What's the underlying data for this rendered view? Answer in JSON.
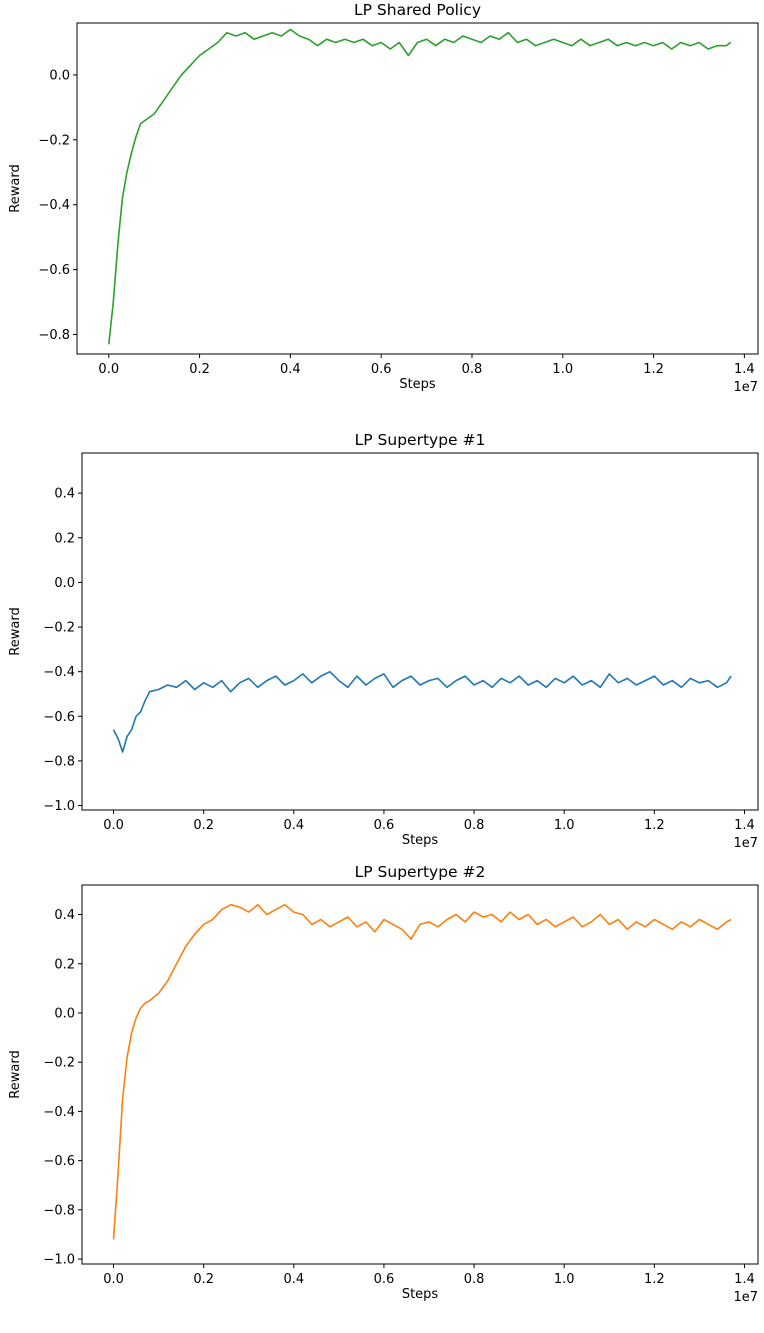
{
  "chart_data": [
    {
      "type": "line",
      "title": "LP Shared Policy",
      "xlabel": "Steps",
      "ylabel": "Reward",
      "x_offset_label": "1e7",
      "xlim": [
        -0.07,
        1.43
      ],
      "ylim": [
        -0.86,
        0.16
      ],
      "xticks": [
        0.0,
        0.2,
        0.4,
        0.6,
        0.8,
        1.0,
        1.2,
        1.4
      ],
      "xtick_labels": [
        "0.0",
        "0.2",
        "0.4",
        "0.6",
        "0.8",
        "1.0",
        "1.2",
        "1.4"
      ],
      "yticks": [
        -0.8,
        -0.6,
        -0.4,
        -0.2,
        0.0
      ],
      "ytick_labels": [
        "−0.8",
        "−0.6",
        "−0.4",
        "−0.2",
        "0.0"
      ],
      "grid": false,
      "series": [
        {
          "color": "#2ca02c",
          "x": [
            0.0,
            0.01,
            0.02,
            0.03,
            0.04,
            0.05,
            0.06,
            0.07,
            0.08,
            0.09,
            0.1,
            0.12,
            0.14,
            0.16,
            0.18,
            0.2,
            0.22,
            0.24,
            0.26,
            0.28,
            0.3,
            0.32,
            0.34,
            0.36,
            0.38,
            0.4,
            0.42,
            0.44,
            0.46,
            0.48,
            0.5,
            0.52,
            0.54,
            0.56,
            0.58,
            0.6,
            0.62,
            0.64,
            0.66,
            0.68,
            0.7,
            0.72,
            0.74,
            0.76,
            0.78,
            0.8,
            0.82,
            0.84,
            0.86,
            0.88,
            0.9,
            0.92,
            0.94,
            0.96,
            0.98,
            1.0,
            1.02,
            1.04,
            1.06,
            1.08,
            1.1,
            1.12,
            1.14,
            1.16,
            1.18,
            1.2,
            1.22,
            1.24,
            1.26,
            1.28,
            1.3,
            1.32,
            1.34,
            1.36,
            1.37
          ],
          "y": [
            -0.83,
            -0.7,
            -0.52,
            -0.38,
            -0.3,
            -0.24,
            -0.19,
            -0.15,
            -0.14,
            -0.13,
            -0.12,
            -0.08,
            -0.04,
            0.0,
            0.03,
            0.06,
            0.08,
            0.1,
            0.13,
            0.12,
            0.13,
            0.11,
            0.12,
            0.13,
            0.12,
            0.14,
            0.12,
            0.11,
            0.09,
            0.11,
            0.1,
            0.11,
            0.1,
            0.11,
            0.09,
            0.1,
            0.08,
            0.1,
            0.06,
            0.1,
            0.11,
            0.09,
            0.11,
            0.1,
            0.12,
            0.11,
            0.1,
            0.12,
            0.11,
            0.13,
            0.1,
            0.11,
            0.09,
            0.1,
            0.11,
            0.1,
            0.09,
            0.11,
            0.09,
            0.1,
            0.11,
            0.09,
            0.1,
            0.09,
            0.1,
            0.09,
            0.1,
            0.08,
            0.1,
            0.09,
            0.1,
            0.08,
            0.09,
            0.09,
            0.1
          ]
        }
      ]
    },
    {
      "type": "line",
      "title": "LP Supertype #1",
      "xlabel": "Steps",
      "ylabel": "Reward",
      "x_offset_label": "1e7",
      "xlim": [
        -0.07,
        1.43
      ],
      "ylim": [
        -1.02,
        0.58
      ],
      "xticks": [
        0.0,
        0.2,
        0.4,
        0.6,
        0.8,
        1.0,
        1.2,
        1.4
      ],
      "xtick_labels": [
        "0.0",
        "0.2",
        "0.4",
        "0.6",
        "0.8",
        "1.0",
        "1.2",
        "1.4"
      ],
      "yticks": [
        -1.0,
        -0.8,
        -0.6,
        -0.4,
        -0.2,
        0.0,
        0.2,
        0.4
      ],
      "ytick_labels": [
        "−1.0",
        "−0.8",
        "−0.6",
        "−0.4",
        "−0.2",
        "0.0",
        "0.2",
        "0.4"
      ],
      "grid": false,
      "series": [
        {
          "color": "#1f77b4",
          "x": [
            0.0,
            0.01,
            0.02,
            0.03,
            0.04,
            0.05,
            0.06,
            0.07,
            0.08,
            0.1,
            0.12,
            0.14,
            0.16,
            0.18,
            0.2,
            0.22,
            0.24,
            0.26,
            0.28,
            0.3,
            0.32,
            0.34,
            0.36,
            0.38,
            0.4,
            0.42,
            0.44,
            0.46,
            0.48,
            0.5,
            0.52,
            0.54,
            0.56,
            0.58,
            0.6,
            0.62,
            0.64,
            0.66,
            0.68,
            0.7,
            0.72,
            0.74,
            0.76,
            0.78,
            0.8,
            0.82,
            0.84,
            0.86,
            0.88,
            0.9,
            0.92,
            0.94,
            0.96,
            0.98,
            1.0,
            1.02,
            1.04,
            1.06,
            1.08,
            1.1,
            1.12,
            1.14,
            1.16,
            1.18,
            1.2,
            1.22,
            1.24,
            1.26,
            1.28,
            1.3,
            1.32,
            1.34,
            1.36,
            1.37
          ],
          "y": [
            -0.66,
            -0.7,
            -0.76,
            -0.69,
            -0.66,
            -0.6,
            -0.58,
            -0.53,
            -0.49,
            -0.48,
            -0.46,
            -0.47,
            -0.44,
            -0.48,
            -0.45,
            -0.47,
            -0.44,
            -0.49,
            -0.45,
            -0.43,
            -0.47,
            -0.44,
            -0.42,
            -0.46,
            -0.44,
            -0.41,
            -0.45,
            -0.42,
            -0.4,
            -0.44,
            -0.47,
            -0.42,
            -0.46,
            -0.43,
            -0.41,
            -0.47,
            -0.44,
            -0.42,
            -0.46,
            -0.44,
            -0.43,
            -0.47,
            -0.44,
            -0.42,
            -0.46,
            -0.44,
            -0.47,
            -0.43,
            -0.45,
            -0.42,
            -0.46,
            -0.44,
            -0.47,
            -0.43,
            -0.45,
            -0.42,
            -0.46,
            -0.44,
            -0.47,
            -0.41,
            -0.45,
            -0.43,
            -0.46,
            -0.44,
            -0.42,
            -0.46,
            -0.44,
            -0.47,
            -0.43,
            -0.45,
            -0.44,
            -0.47,
            -0.45,
            -0.42
          ]
        }
      ]
    },
    {
      "type": "line",
      "title": "LP Supertype #2",
      "xlabel": "Steps",
      "ylabel": "Reward",
      "x_offset_label": "1e7",
      "xlim": [
        -0.07,
        1.43
      ],
      "ylim": [
        -1.02,
        0.52
      ],
      "xticks": [
        0.0,
        0.2,
        0.4,
        0.6,
        0.8,
        1.0,
        1.2,
        1.4
      ],
      "xtick_labels": [
        "0.0",
        "0.2",
        "0.4",
        "0.6",
        "0.8",
        "1.0",
        "1.2",
        "1.4"
      ],
      "yticks": [
        -1.0,
        -0.8,
        -0.6,
        -0.4,
        -0.2,
        0.0,
        0.2,
        0.4
      ],
      "ytick_labels": [
        "−1.0",
        "−0.8",
        "−0.6",
        "−0.4",
        "−0.2",
        "0.0",
        "0.2",
        "0.4"
      ],
      "grid": false,
      "series": [
        {
          "color": "#ff7f0e",
          "x": [
            0.0,
            0.01,
            0.02,
            0.03,
            0.04,
            0.05,
            0.06,
            0.07,
            0.08,
            0.1,
            0.12,
            0.14,
            0.16,
            0.18,
            0.2,
            0.22,
            0.24,
            0.26,
            0.28,
            0.3,
            0.32,
            0.34,
            0.36,
            0.38,
            0.4,
            0.42,
            0.44,
            0.46,
            0.48,
            0.5,
            0.52,
            0.54,
            0.56,
            0.58,
            0.6,
            0.62,
            0.64,
            0.66,
            0.68,
            0.7,
            0.72,
            0.74,
            0.76,
            0.78,
            0.8,
            0.82,
            0.84,
            0.86,
            0.88,
            0.9,
            0.92,
            0.94,
            0.96,
            0.98,
            1.0,
            1.02,
            1.04,
            1.06,
            1.08,
            1.1,
            1.12,
            1.14,
            1.16,
            1.18,
            1.2,
            1.22,
            1.24,
            1.26,
            1.28,
            1.3,
            1.32,
            1.34,
            1.36,
            1.37
          ],
          "y": [
            -0.92,
            -0.65,
            -0.35,
            -0.18,
            -0.08,
            -0.02,
            0.02,
            0.04,
            0.05,
            0.08,
            0.13,
            0.2,
            0.27,
            0.32,
            0.36,
            0.38,
            0.42,
            0.44,
            0.43,
            0.41,
            0.44,
            0.4,
            0.42,
            0.44,
            0.41,
            0.4,
            0.36,
            0.38,
            0.35,
            0.37,
            0.39,
            0.35,
            0.37,
            0.33,
            0.38,
            0.36,
            0.34,
            0.3,
            0.36,
            0.37,
            0.35,
            0.38,
            0.4,
            0.37,
            0.41,
            0.39,
            0.4,
            0.37,
            0.41,
            0.38,
            0.4,
            0.36,
            0.38,
            0.35,
            0.37,
            0.39,
            0.35,
            0.37,
            0.4,
            0.36,
            0.38,
            0.34,
            0.37,
            0.35,
            0.38,
            0.36,
            0.34,
            0.37,
            0.35,
            0.38,
            0.36,
            0.34,
            0.37,
            0.38
          ]
        }
      ]
    }
  ]
}
